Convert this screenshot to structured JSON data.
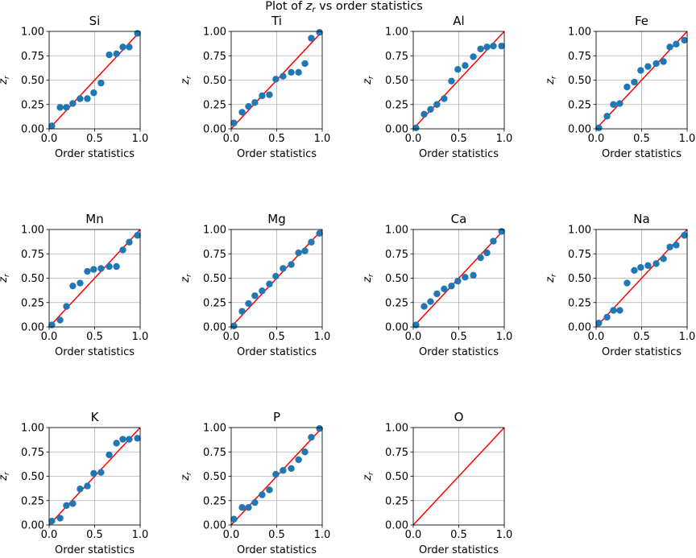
{
  "figure": {
    "title_prefix": "Plot of ",
    "title_var": "z",
    "title_sub": "r",
    "title_suffix": " vs order statistics"
  },
  "chart_data": [
    {
      "type": "scatter",
      "title": "Si",
      "xlabel": "Order statistics",
      "ylabel": "z_r",
      "xlim": [
        0,
        1
      ],
      "ylim": [
        0,
        1
      ],
      "xticks": [
        "0.0",
        "0.5",
        "1.0"
      ],
      "yticks": [
        "0.00",
        "0.25",
        "0.50",
        "0.75",
        "1.00"
      ],
      "grid": true,
      "reference_line": [
        [
          0,
          0
        ],
        [
          1,
          1
        ]
      ],
      "point_color": "#1f77b4",
      "line_color": "#ff0000",
      "x": [
        0.03,
        0.12,
        0.19,
        0.26,
        0.34,
        0.42,
        0.49,
        0.57,
        0.66,
        0.74,
        0.81,
        0.88,
        0.97
      ],
      "y": [
        0.03,
        0.22,
        0.22,
        0.26,
        0.31,
        0.31,
        0.37,
        0.47,
        0.76,
        0.77,
        0.84,
        0.84,
        0.98
      ]
    },
    {
      "type": "scatter",
      "title": "Ti",
      "xlabel": "Order statistics",
      "ylabel": "z_r",
      "xlim": [
        0,
        1
      ],
      "ylim": [
        0,
        1
      ],
      "xticks": [
        "0.0",
        "0.5",
        "1.0"
      ],
      "yticks": [
        "0.00",
        "0.25",
        "0.50",
        "0.75",
        "1.00"
      ],
      "grid": true,
      "reference_line": [
        [
          0,
          0
        ],
        [
          1,
          1
        ]
      ],
      "point_color": "#1f77b4",
      "line_color": "#ff0000",
      "x": [
        0.03,
        0.12,
        0.19,
        0.26,
        0.34,
        0.42,
        0.49,
        0.57,
        0.66,
        0.74,
        0.81,
        0.88,
        0.97
      ],
      "y": [
        0.06,
        0.17,
        0.23,
        0.27,
        0.34,
        0.35,
        0.51,
        0.54,
        0.58,
        0.58,
        0.67,
        0.93,
        0.99
      ]
    },
    {
      "type": "scatter",
      "title": "Al",
      "xlabel": "Order statistics",
      "ylabel": "z_r",
      "xlim": [
        0,
        1
      ],
      "ylim": [
        0,
        1
      ],
      "xticks": [
        "0.0",
        "0.5",
        "1.0"
      ],
      "yticks": [
        "0.00",
        "0.25",
        "0.50",
        "0.75",
        "1.00"
      ],
      "grid": true,
      "reference_line": [
        [
          0,
          0
        ],
        [
          1,
          1
        ]
      ],
      "point_color": "#1f77b4",
      "line_color": "#ff0000",
      "x": [
        0.03,
        0.12,
        0.19,
        0.26,
        0.34,
        0.42,
        0.49,
        0.57,
        0.66,
        0.74,
        0.81,
        0.88,
        0.97
      ],
      "y": [
        0.01,
        0.15,
        0.2,
        0.25,
        0.31,
        0.49,
        0.61,
        0.65,
        0.74,
        0.82,
        0.84,
        0.85,
        0.85
      ]
    },
    {
      "type": "scatter",
      "title": "Fe",
      "xlabel": "Order statistics",
      "ylabel": "z_r",
      "xlim": [
        0,
        1
      ],
      "ylim": [
        0,
        1
      ],
      "xticks": [
        "0.0",
        "0.5",
        "1.0"
      ],
      "yticks": [
        "0.00",
        "0.25",
        "0.50",
        "0.75",
        "1.00"
      ],
      "grid": true,
      "reference_line": [
        [
          0,
          0
        ],
        [
          1,
          1
        ]
      ],
      "point_color": "#1f77b4",
      "line_color": "#ff0000",
      "x": [
        0.03,
        0.12,
        0.19,
        0.26,
        0.34,
        0.42,
        0.49,
        0.57,
        0.66,
        0.74,
        0.81,
        0.88,
        0.97
      ],
      "y": [
        0.01,
        0.13,
        0.25,
        0.26,
        0.43,
        0.48,
        0.6,
        0.64,
        0.67,
        0.69,
        0.84,
        0.87,
        0.91
      ]
    },
    {
      "type": "scatter",
      "title": "Mn",
      "xlabel": "Order statistics",
      "ylabel": "z_r",
      "xlim": [
        0,
        1
      ],
      "ylim": [
        0,
        1
      ],
      "xticks": [
        "0.0",
        "0.5",
        "1.0"
      ],
      "yticks": [
        "0.00",
        "0.25",
        "0.50",
        "0.75",
        "1.00"
      ],
      "grid": true,
      "reference_line": [
        [
          0,
          0
        ],
        [
          1,
          1
        ]
      ],
      "point_color": "#1f77b4",
      "line_color": "#ff0000",
      "x": [
        0.03,
        0.12,
        0.19,
        0.26,
        0.34,
        0.42,
        0.49,
        0.57,
        0.66,
        0.74,
        0.81,
        0.88,
        0.97
      ],
      "y": [
        0.02,
        0.07,
        0.21,
        0.42,
        0.45,
        0.57,
        0.59,
        0.6,
        0.62,
        0.62,
        0.79,
        0.87,
        0.94
      ]
    },
    {
      "type": "scatter",
      "title": "Mg",
      "xlabel": "Order statistics",
      "ylabel": "z_r",
      "xlim": [
        0,
        1
      ],
      "ylim": [
        0,
        1
      ],
      "xticks": [
        "0.0",
        "0.5",
        "1.0"
      ],
      "yticks": [
        "0.00",
        "0.25",
        "0.50",
        "0.75",
        "1.00"
      ],
      "grid": true,
      "reference_line": [
        [
          0,
          0
        ],
        [
          1,
          1
        ]
      ],
      "point_color": "#1f77b4",
      "line_color": "#ff0000",
      "x": [
        0.03,
        0.12,
        0.19,
        0.26,
        0.34,
        0.42,
        0.49,
        0.57,
        0.66,
        0.74,
        0.81,
        0.88,
        0.97
      ],
      "y": [
        0.01,
        0.16,
        0.24,
        0.32,
        0.37,
        0.44,
        0.52,
        0.6,
        0.64,
        0.76,
        0.78,
        0.87,
        0.96
      ]
    },
    {
      "type": "scatter",
      "title": "Ca",
      "xlabel": "Order statistics",
      "ylabel": "z_r",
      "xlim": [
        0,
        1
      ],
      "ylim": [
        0,
        1
      ],
      "xticks": [
        "0.0",
        "0.5",
        "1.0"
      ],
      "yticks": [
        "0.00",
        "0.25",
        "0.50",
        "0.75",
        "1.00"
      ],
      "grid": true,
      "reference_line": [
        [
          0,
          0
        ],
        [
          1,
          1
        ]
      ],
      "point_color": "#1f77b4",
      "line_color": "#ff0000",
      "x": [
        0.03,
        0.12,
        0.19,
        0.26,
        0.34,
        0.42,
        0.49,
        0.57,
        0.66,
        0.74,
        0.81,
        0.88,
        0.97
      ],
      "y": [
        0.02,
        0.21,
        0.26,
        0.34,
        0.39,
        0.42,
        0.47,
        0.51,
        0.53,
        0.71,
        0.76,
        0.88,
        0.98
      ]
    },
    {
      "type": "scatter",
      "title": "Na",
      "xlabel": "Order statistics",
      "ylabel": "z_r",
      "xlim": [
        0,
        1
      ],
      "ylim": [
        0,
        1
      ],
      "xticks": [
        "0.0",
        "0.5",
        "1.0"
      ],
      "yticks": [
        "0.00",
        "0.25",
        "0.50",
        "0.75",
        "1.00"
      ],
      "grid": true,
      "reference_line": [
        [
          0,
          0
        ],
        [
          1,
          1
        ]
      ],
      "point_color": "#1f77b4",
      "line_color": "#ff0000",
      "x": [
        0.03,
        0.12,
        0.19,
        0.26,
        0.34,
        0.42,
        0.49,
        0.57,
        0.66,
        0.74,
        0.81,
        0.88,
        0.97
      ],
      "y": [
        0.04,
        0.1,
        0.17,
        0.17,
        0.45,
        0.58,
        0.61,
        0.63,
        0.65,
        0.7,
        0.82,
        0.84,
        0.94
      ]
    },
    {
      "type": "scatter",
      "title": "K",
      "xlabel": "Order statistics",
      "ylabel": "z_r",
      "xlim": [
        0,
        1
      ],
      "ylim": [
        0,
        1
      ],
      "xticks": [
        "0.0",
        "0.5",
        "1.0"
      ],
      "yticks": [
        "0.00",
        "0.25",
        "0.50",
        "0.75",
        "1.00"
      ],
      "grid": true,
      "reference_line": [
        [
          0,
          0
        ],
        [
          1,
          1
        ]
      ],
      "point_color": "#1f77b4",
      "line_color": "#ff0000",
      "x": [
        0.03,
        0.12,
        0.19,
        0.26,
        0.34,
        0.42,
        0.49,
        0.57,
        0.66,
        0.74,
        0.81,
        0.88,
        0.97
      ],
      "y": [
        0.04,
        0.07,
        0.2,
        0.22,
        0.37,
        0.4,
        0.53,
        0.54,
        0.72,
        0.84,
        0.88,
        0.88,
        0.89
      ]
    },
    {
      "type": "scatter",
      "title": "P",
      "xlabel": "Order statistics",
      "ylabel": "z_r",
      "xlim": [
        0,
        1
      ],
      "ylim": [
        0,
        1
      ],
      "xticks": [
        "0.0",
        "0.5",
        "1.0"
      ],
      "yticks": [
        "0.00",
        "0.25",
        "0.50",
        "0.75",
        "1.00"
      ],
      "grid": true,
      "reference_line": [
        [
          0,
          0
        ],
        [
          1,
          1
        ]
      ],
      "point_color": "#1f77b4",
      "line_color": "#ff0000",
      "x": [
        0.03,
        0.12,
        0.19,
        0.26,
        0.34,
        0.42,
        0.49,
        0.57,
        0.66,
        0.74,
        0.81,
        0.88,
        0.97
      ],
      "y": [
        0.06,
        0.18,
        0.18,
        0.23,
        0.31,
        0.36,
        0.52,
        0.56,
        0.58,
        0.67,
        0.75,
        0.9,
        0.99
      ]
    },
    {
      "type": "scatter",
      "title": "O",
      "xlabel": "Order statistics",
      "ylabel": "z_r",
      "xlim": [
        0,
        1
      ],
      "ylim": [
        0,
        1
      ],
      "xticks": [
        "0.0",
        "0.5",
        "1.0"
      ],
      "yticks": [
        "0.00",
        "0.25",
        "0.50",
        "0.75",
        "1.00"
      ],
      "grid": true,
      "reference_line": [
        [
          0,
          0
        ],
        [
          1,
          1
        ]
      ],
      "point_color": "#1f77b4",
      "line_color": "#ff0000",
      "x": [],
      "y": []
    }
  ]
}
